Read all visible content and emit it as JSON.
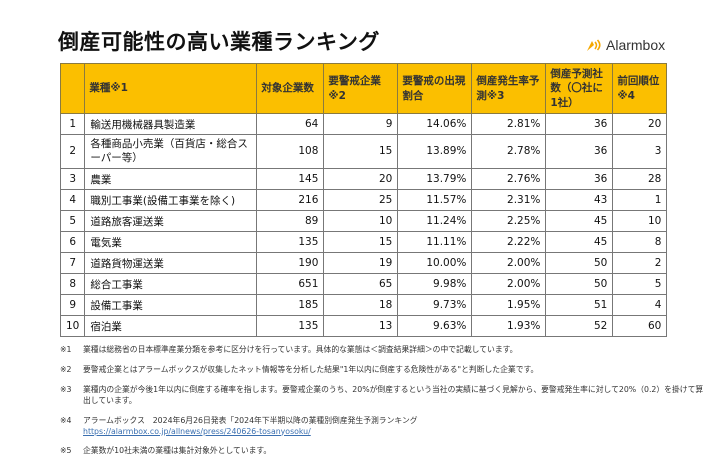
{
  "title": "倒産可能性の高い業種ランキング",
  "logo": {
    "text": "Alarmbox",
    "icon": "alarm-wave-icon",
    "color": "#f5a800"
  },
  "colors": {
    "header": "#fbbf00"
  },
  "table": {
    "headers": [
      "",
      "業種※1",
      "対象企業数",
      "要警戒企業※2",
      "要警戒の出現割合",
      "倒産発生率予測※3",
      "倒産予測社数（〇社に1社）",
      "前回順位※4"
    ],
    "rows": [
      [
        "1",
        "輸送用機械器具製造業",
        "64",
        "9",
        "14.06%",
        "2.81%",
        "36",
        "20"
      ],
      [
        "2",
        "各種商品小売業（百貨店・総合スーパー等）",
        "108",
        "15",
        "13.89%",
        "2.78%",
        "36",
        "3"
      ],
      [
        "3",
        "農業",
        "145",
        "20",
        "13.79%",
        "2.76%",
        "36",
        "28"
      ],
      [
        "4",
        "職別工事業(設備工事業を除く)",
        "216",
        "25",
        "11.57%",
        "2.31%",
        "43",
        "1"
      ],
      [
        "5",
        "道路旅客運送業",
        "89",
        "10",
        "11.24%",
        "2.25%",
        "45",
        "10"
      ],
      [
        "6",
        "電気業",
        "135",
        "15",
        "11.11%",
        "2.22%",
        "45",
        "8"
      ],
      [
        "7",
        "道路貨物運送業",
        "190",
        "19",
        "10.00%",
        "2.00%",
        "50",
        "2"
      ],
      [
        "8",
        "総合工事業",
        "651",
        "65",
        "9.98%",
        "2.00%",
        "50",
        "5"
      ],
      [
        "9",
        "設備工事業",
        "185",
        "18",
        "9.73%",
        "1.95%",
        "51",
        "4"
      ],
      [
        "10",
        "宿泊業",
        "135",
        "13",
        "9.63%",
        "1.93%",
        "52",
        "60"
      ]
    ]
  },
  "notes": [
    {
      "key": "※1",
      "text": "業種は総務省の日本標準産業分類を参考に区分けを行っています。具体的な業態は＜調査結果詳細＞の中で記載しています。"
    },
    {
      "key": "※2",
      "text": "要警戒企業とはアラームボックスが収集したネット情報等を分析した結果\"1年以内に倒産する危険性がある\"と判断した企業です。"
    },
    {
      "key": "※3",
      "text": "業種内の企業が今後1年以内に倒産する確率を指します。要警戒企業のうち、20%が倒産するという当社の実績に基づく見解から、要警戒発生率に対して20%（0.2）を掛けて算出しています。"
    },
    {
      "key": "※4",
      "text": "アラームボックス　2024年6月26日発表「2024年下半期以降の業種別倒産発生予測ランキング",
      "link": "https://alarmbox.co.jp/allnews/press/240626-tosanyosoku/"
    },
    {
      "key": "※5",
      "text": "企業数が10社未満の業種は集計対象外としています。"
    }
  ]
}
